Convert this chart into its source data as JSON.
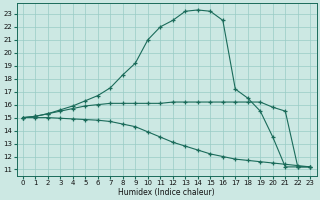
{
  "bg_color": "#cce8e3",
  "grid_color": "#99ccc5",
  "line_color": "#1a6b5a",
  "xlabel": "Humidex (Indice chaleur)",
  "xlim": [
    -0.5,
    23.5
  ],
  "ylim": [
    10.5,
    23.8
  ],
  "xticks": [
    0,
    1,
    2,
    3,
    4,
    5,
    6,
    7,
    8,
    9,
    10,
    11,
    12,
    13,
    14,
    15,
    16,
    17,
    18,
    19,
    20,
    21,
    22,
    23
  ],
  "yticks": [
    11,
    12,
    13,
    14,
    15,
    16,
    17,
    18,
    19,
    20,
    21,
    22,
    23
  ],
  "line1_x": [
    0,
    1,
    2,
    3,
    4,
    5,
    6,
    7,
    8,
    9,
    10,
    11,
    12,
    13,
    14,
    15,
    16,
    17,
    18,
    19,
    20,
    21,
    22,
    23
  ],
  "line1_y": [
    15.0,
    15.1,
    15.3,
    15.6,
    15.9,
    16.3,
    16.7,
    17.3,
    18.3,
    19.2,
    21.0,
    22.0,
    22.5,
    23.2,
    23.3,
    23.2,
    22.5,
    17.2,
    16.5,
    15.5,
    13.5,
    11.2,
    11.2,
    11.2
  ],
  "line2_x": [
    0,
    1,
    2,
    3,
    4,
    5,
    6,
    7,
    8,
    9,
    10,
    11,
    12,
    13,
    14,
    15,
    16,
    17,
    18,
    19,
    20,
    21,
    22,
    23
  ],
  "line2_y": [
    15.0,
    15.1,
    15.3,
    15.5,
    15.7,
    15.9,
    16.0,
    16.1,
    16.1,
    16.1,
    16.1,
    16.1,
    16.2,
    16.2,
    16.2,
    16.2,
    16.2,
    16.2,
    16.2,
    16.2,
    15.8,
    15.5,
    11.2,
    11.2
  ],
  "line3_x": [
    0,
    1,
    2,
    3,
    4,
    5,
    6,
    7,
    8,
    9,
    10,
    11,
    12,
    13,
    14,
    15,
    16,
    17,
    18,
    19,
    20,
    21,
    22,
    23
  ],
  "line3_y": [
    15.0,
    15.0,
    15.0,
    14.95,
    14.9,
    14.85,
    14.8,
    14.7,
    14.5,
    14.3,
    13.9,
    13.5,
    13.1,
    12.8,
    12.5,
    12.2,
    12.0,
    11.8,
    11.7,
    11.6,
    11.5,
    11.4,
    11.3,
    11.2
  ]
}
